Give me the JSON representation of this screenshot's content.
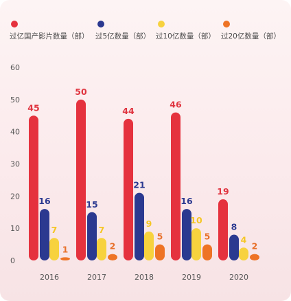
{
  "chart_data": {
    "type": "bar",
    "categories": [
      "2016",
      "2017",
      "2018",
      "2019",
      "2020"
    ],
    "series": [
      {
        "name": "过亿国产影片数量（部）",
        "color": "#e5323e",
        "label_color": "#e03540",
        "values": [
          45,
          50,
          44,
          46,
          19
        ]
      },
      {
        "name": "过5亿数量（部）",
        "color": "#2b3990",
        "label_color": "#2b3990",
        "values": [
          16,
          15,
          21,
          16,
          8
        ]
      },
      {
        "name": "过10亿数量（部）",
        "color": "#f7d23e",
        "label_color": "#f5c624",
        "values": [
          7,
          7,
          9,
          10,
          4
        ]
      },
      {
        "name": "过20亿数量（部）",
        "color": "#ee7325",
        "label_color": "#e8702a",
        "values": [
          1,
          2,
          5,
          5,
          2
        ]
      }
    ],
    "yticks": [
      0,
      10,
      20,
      30,
      40,
      50,
      60
    ],
    "ylim": [
      0,
      60
    ],
    "grid": false,
    "legend_position": "top",
    "title": "",
    "xlabel": "",
    "ylabel": ""
  }
}
